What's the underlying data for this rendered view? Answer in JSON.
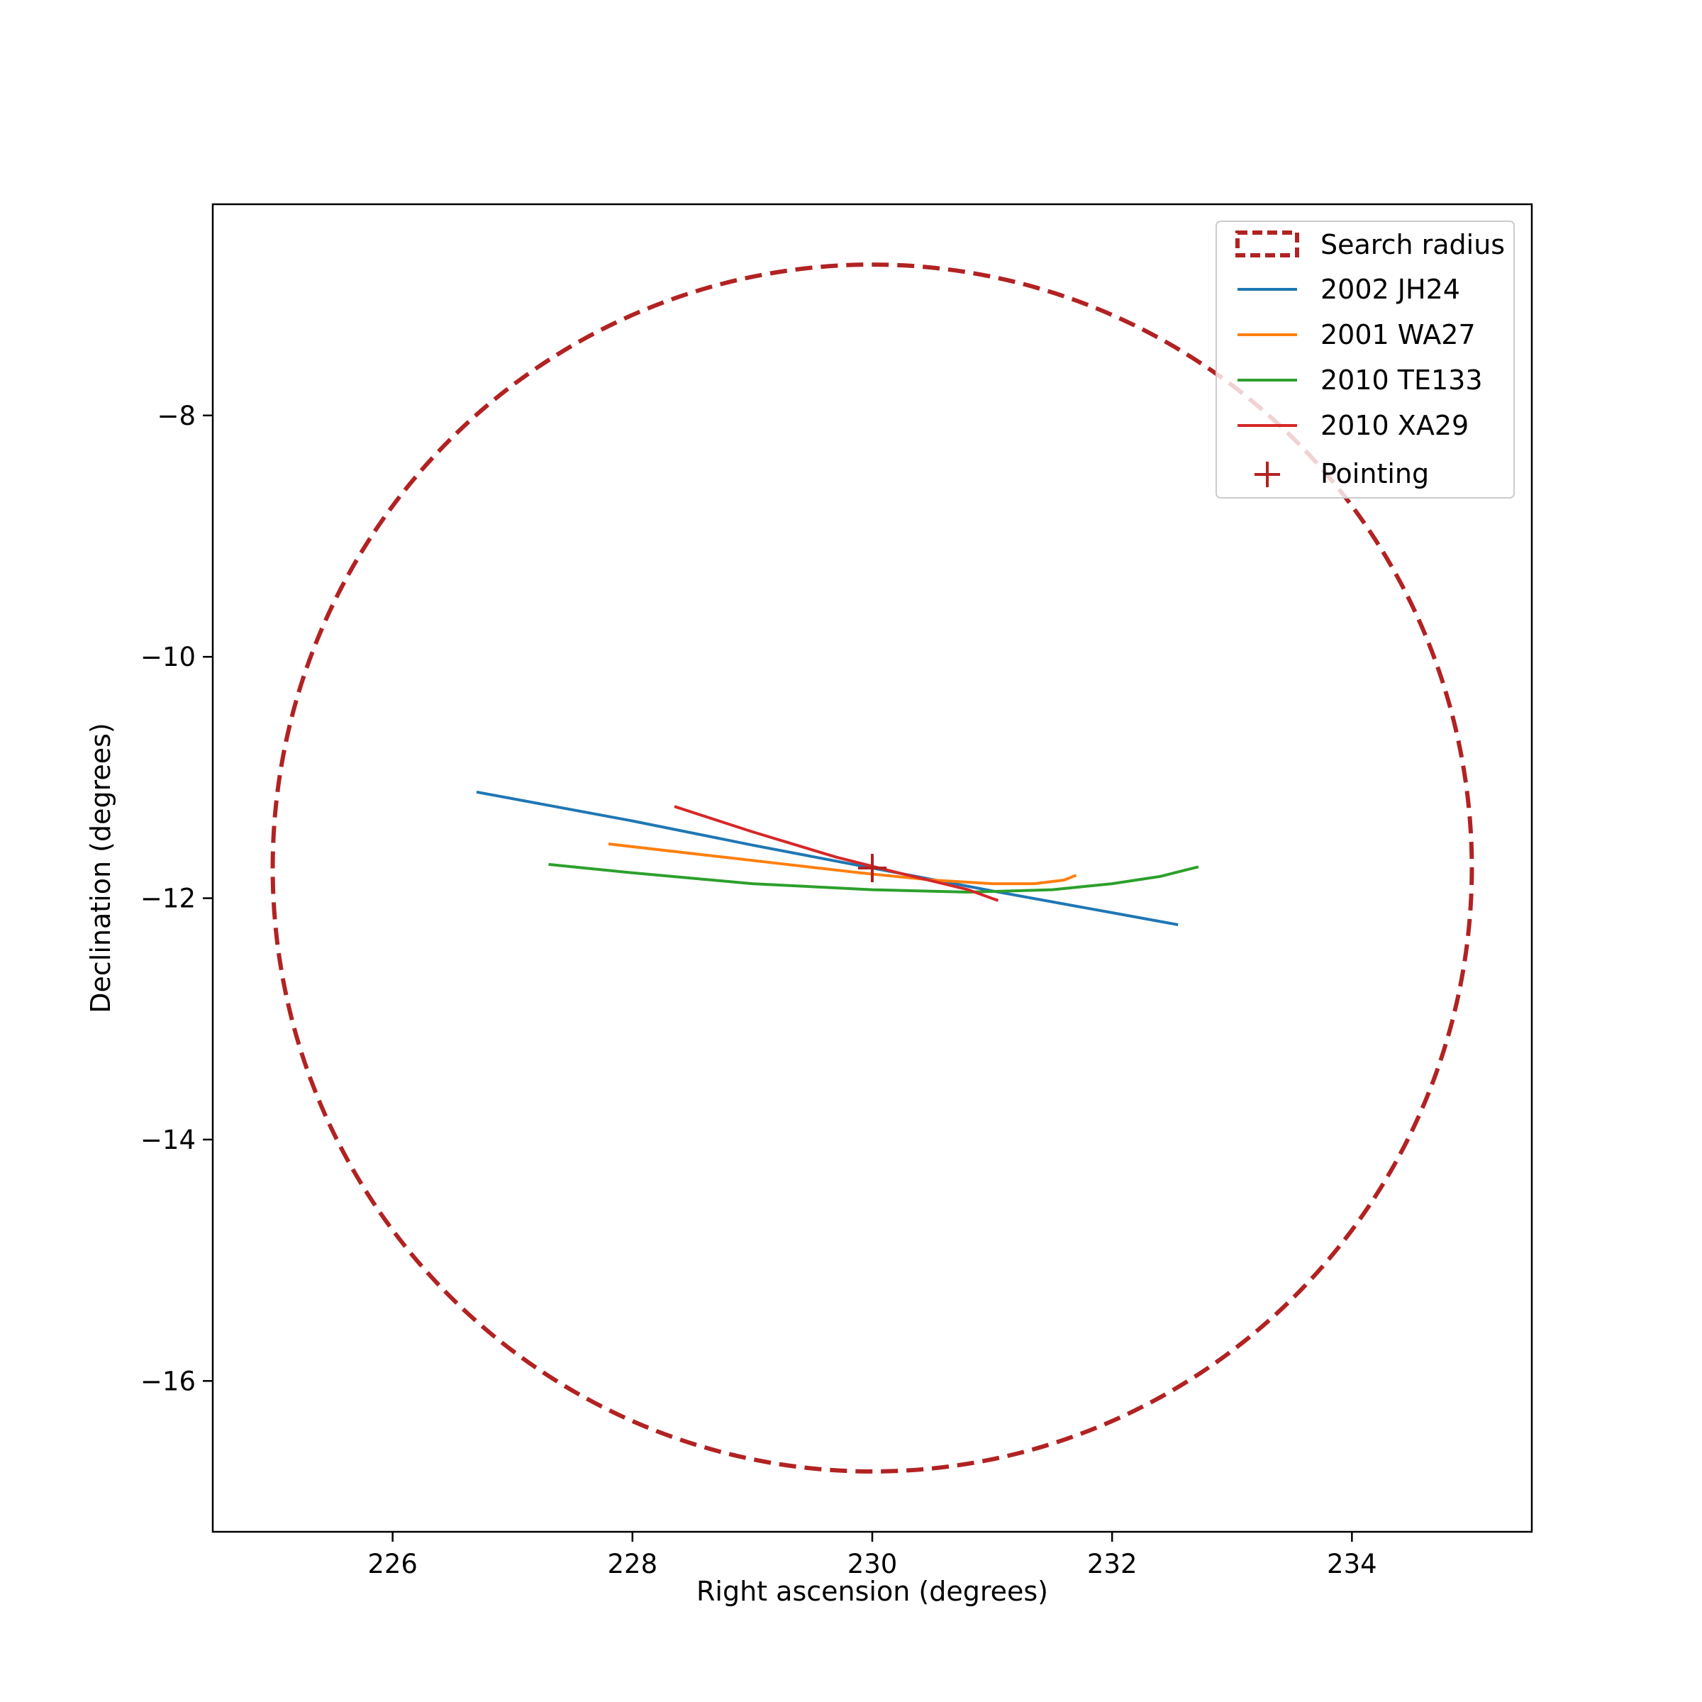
{
  "chart_data": {
    "type": "line",
    "title": "",
    "xlabel": "Right ascension (degrees)",
    "ylabel": "Declination (degrees)",
    "xlim": [
      224.5,
      235.5
    ],
    "ylim": [
      -17.25,
      -6.25
    ],
    "xticks": [
      226,
      228,
      230,
      232,
      234
    ],
    "yticks": [
      -8,
      -10,
      -12,
      -14,
      -16
    ],
    "xtick_labels": [
      "226",
      "228",
      "230",
      "232",
      "234"
    ],
    "ytick_labels": [
      "−8",
      "−10",
      "−12",
      "−14",
      "−16"
    ],
    "grid": false,
    "legend_position": "top-right",
    "search_radius": {
      "name": "Search radius",
      "center": [
        230.0,
        -11.75
      ],
      "radius_deg": 5.0,
      "color": "#b22222",
      "style": "dashed"
    },
    "series": [
      {
        "name": "2002 JH24",
        "color": "#1f77b4",
        "x": [
          226.7,
          228.0,
          229.0,
          230.0,
          231.0,
          232.0,
          232.55
        ],
        "y": [
          -11.12,
          -11.36,
          -11.56,
          -11.75,
          -11.94,
          -12.12,
          -12.22
        ]
      },
      {
        "name": "2001 WA27",
        "color": "#ff7f0e",
        "x": [
          227.8,
          228.5,
          229.2,
          229.9,
          230.5,
          231.0,
          231.35,
          231.6,
          231.7
        ],
        "y": [
          -11.55,
          -11.63,
          -11.71,
          -11.79,
          -11.85,
          -11.88,
          -11.88,
          -11.85,
          -11.81
        ]
      },
      {
        "name": "2010 TE133",
        "color": "#2ca02c",
        "x": [
          227.3,
          228.0,
          229.0,
          230.0,
          230.8,
          231.5,
          232.0,
          232.4,
          232.72
        ],
        "y": [
          -11.72,
          -11.79,
          -11.88,
          -11.93,
          -11.95,
          -11.93,
          -11.88,
          -11.82,
          -11.74
        ]
      },
      {
        "name": "2010 XA29",
        "color": "#d62728",
        "x": [
          228.35,
          229.0,
          229.7,
          230.3,
          230.8,
          231.05
        ],
        "y": [
          -11.24,
          -11.45,
          -11.66,
          -11.81,
          -11.93,
          -12.02
        ]
      }
    ],
    "pointing": {
      "name": "Pointing",
      "x": 230.0,
      "y": -11.75,
      "marker": "+",
      "color": "#b22222"
    }
  }
}
